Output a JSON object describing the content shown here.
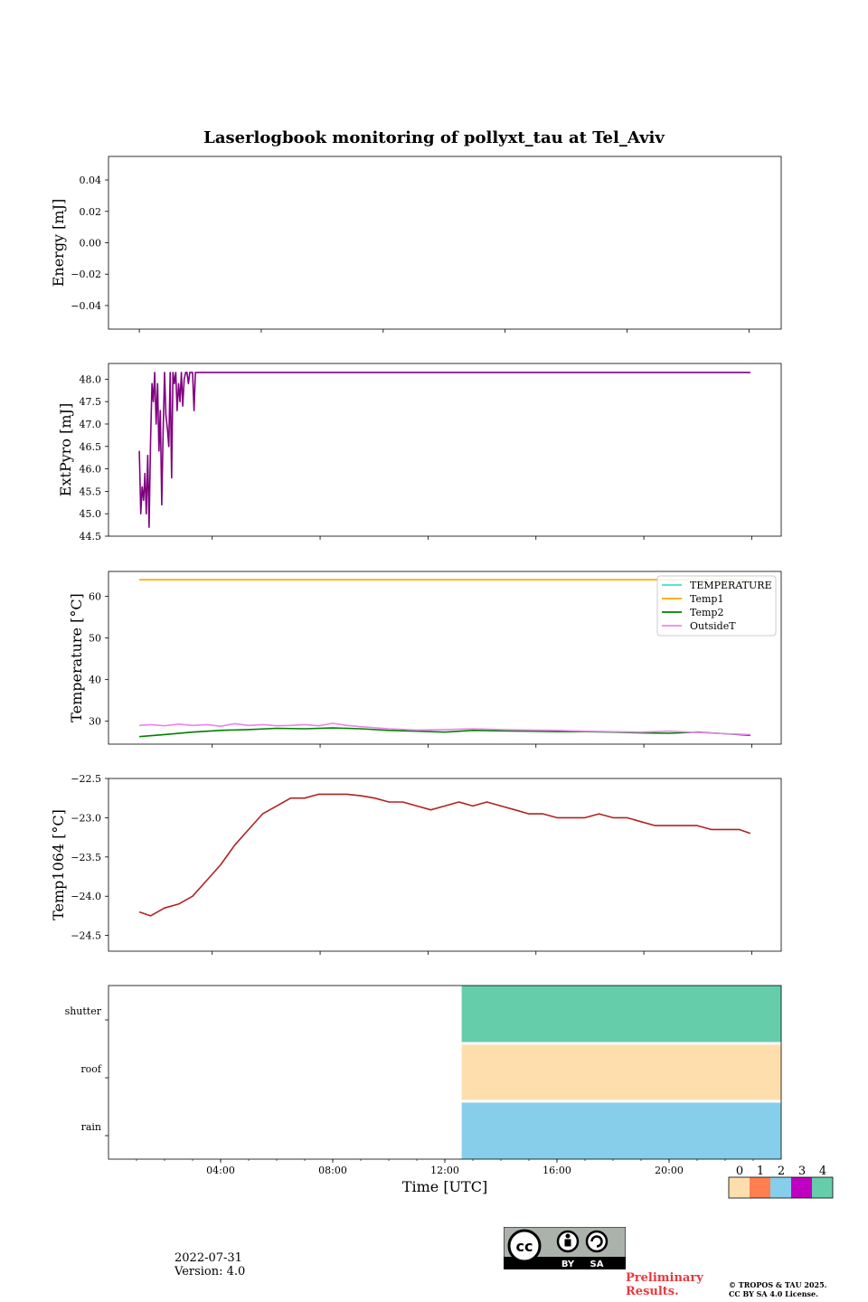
{
  "title": "Laserlogbook monitoring of pollyxt_tau at Tel_Aviv",
  "colors": {
    "extpyro": "#800080",
    "temp1064": "#b22222",
    "TEMPERATURE": "#40e0d0",
    "Temp1": "#ffa500",
    "Temp2": "#008000",
    "OutsideT": "#ee82ee"
  },
  "chart_data": [
    {
      "id": "energy",
      "type": "line",
      "ylabel": "Energy [mJ]",
      "xlim": [
        0,
        24
      ],
      "ylim": [
        -0.055,
        0.055
      ],
      "yticks": [
        0.04,
        0.02,
        0.0,
        -0.02,
        -0.04
      ],
      "yticklabels": [
        "0.04",
        "0.02",
        "0.00",
        "−0.02",
        "−0.04"
      ],
      "xticks_hours": [
        1.1,
        5.45,
        9.8,
        14.15,
        18.5,
        22.85
      ],
      "series": []
    },
    {
      "id": "extpyro",
      "type": "line",
      "ylabel": "ExtPyro [mJ]",
      "xlim": [
        0,
        24
      ],
      "ylim": [
        44.5,
        48.35
      ],
      "yticks": [
        48.0,
        47.5,
        47.0,
        46.5,
        46.0,
        45.5,
        45.0,
        44.5
      ],
      "yticklabels": [
        "48.0",
        "47.5",
        "47.0",
        "46.5",
        "46.0",
        "45.5",
        "45.0",
        "44.5"
      ],
      "xticks_hours": [
        3.7,
        7.55,
        11.4,
        15.25,
        19.1,
        22.95
      ],
      "series": [
        {
          "name": "ExtPyro",
          "x": [
            1.1,
            1.15,
            1.2,
            1.25,
            1.3,
            1.35,
            1.4,
            1.45,
            1.5,
            1.55,
            1.6,
            1.65,
            1.7,
            1.75,
            1.8,
            1.85,
            1.9,
            1.95,
            2.0,
            2.05,
            2.1,
            2.15,
            2.2,
            2.25,
            2.3,
            2.35,
            2.4,
            2.45,
            2.5,
            2.55,
            2.6,
            2.65,
            2.7,
            2.75,
            2.8,
            2.85,
            2.9,
            2.95,
            3.0,
            3.05,
            3.1,
            3.15,
            3.2,
            3.25,
            3.3,
            22.9
          ],
          "values": [
            46.4,
            45.0,
            45.6,
            45.3,
            45.9,
            45.0,
            46.3,
            44.7,
            46.6,
            47.9,
            47.5,
            48.15,
            47.0,
            47.9,
            46.4,
            47.3,
            45.2,
            46.8,
            48.15,
            47.2,
            46.9,
            46.5,
            48.15,
            45.8,
            48.15,
            47.9,
            48.15,
            47.3,
            47.9,
            47.5,
            48.15,
            47.4,
            48.0,
            48.15,
            48.15,
            47.9,
            48.15,
            48.15,
            48.15,
            47.3,
            48.15,
            48.15,
            48.15,
            48.15,
            48.15,
            48.15
          ]
        }
      ]
    },
    {
      "id": "temperature",
      "type": "line",
      "ylabel": "Temperature [°C]",
      "xlim": [
        0,
        24
      ],
      "ylim": [
        24.5,
        66
      ],
      "yticks": [
        60,
        50,
        40,
        30
      ],
      "yticklabels": [
        "60",
        "50",
        "40",
        "30"
      ],
      "xticks_hours": [
        3.7,
        7.55,
        11.4,
        15.25,
        19.1,
        22.95
      ],
      "legend": [
        "TEMPERATURE",
        "Temp1",
        "Temp2",
        "OutsideT"
      ],
      "legend_position": "upper right",
      "series": [
        {
          "name": "Temp1",
          "x": [
            1.1,
            22.9
          ],
          "values": [
            64.0,
            64.0
          ]
        },
        {
          "name": "Temp2",
          "x": [
            1.1,
            2.0,
            3.0,
            4.0,
            5.0,
            6.0,
            7.0,
            8.0,
            9.0,
            10.0,
            11.0,
            12.0,
            13.0,
            14.0,
            15.0,
            16.0,
            17.0,
            18.0,
            19.0,
            20.0,
            21.0,
            22.0,
            22.9
          ],
          "values": [
            26.3,
            26.8,
            27.4,
            27.8,
            28.0,
            28.3,
            28.2,
            28.4,
            28.2,
            27.8,
            27.6,
            27.4,
            27.8,
            27.7,
            27.6,
            27.5,
            27.5,
            27.4,
            27.2,
            27.1,
            27.4,
            27.0,
            26.6
          ]
        },
        {
          "name": "OutsideT",
          "x": [
            1.1,
            1.5,
            2.0,
            2.5,
            3.0,
            3.5,
            4.0,
            4.5,
            5.0,
            5.5,
            6.0,
            6.5,
            7.0,
            7.5,
            8.0,
            8.5,
            9.0,
            10.0,
            11.0,
            12.0,
            13.0,
            14.0,
            15.0,
            16.0,
            17.0,
            18.0,
            19.0,
            20.0,
            21.0,
            22.0,
            22.9
          ],
          "values": [
            29.0,
            29.2,
            28.9,
            29.3,
            29.0,
            29.2,
            28.8,
            29.4,
            29.0,
            29.2,
            28.9,
            29.0,
            29.2,
            28.9,
            29.5,
            29.0,
            28.7,
            28.2,
            27.9,
            28.0,
            28.2,
            28.0,
            27.9,
            27.8,
            27.6,
            27.5,
            27.4,
            27.6,
            27.3,
            27.0,
            26.8
          ]
        }
      ]
    },
    {
      "id": "temp1064",
      "type": "line",
      "ylabel": "Temp1064 [°C]",
      "xlim": [
        0,
        24
      ],
      "ylim": [
        -24.7,
        -22.5
      ],
      "yticks": [
        -22.5,
        -23.0,
        -23.5,
        -24.0,
        -24.5
      ],
      "yticklabels": [
        "−22.5",
        "−23.0",
        "−23.5",
        "−24.0",
        "−24.5"
      ],
      "xticks_hours": [
        3.7,
        7.55,
        11.4,
        15.25,
        19.1,
        22.95
      ],
      "series": [
        {
          "name": "Temp1064",
          "x": [
            1.1,
            1.5,
            2.0,
            2.5,
            3.0,
            3.5,
            4.0,
            4.5,
            5.0,
            5.5,
            6.0,
            6.5,
            7.0,
            7.5,
            8.0,
            8.5,
            9.0,
            9.5,
            10.0,
            10.5,
            11.0,
            11.5,
            12.0,
            12.5,
            13.0,
            13.5,
            14.0,
            14.5,
            15.0,
            15.5,
            16.0,
            16.5,
            17.0,
            17.5,
            18.0,
            18.5,
            19.0,
            19.5,
            20.0,
            20.5,
            21.0,
            21.5,
            22.0,
            22.5,
            22.9
          ],
          "values": [
            -24.2,
            -24.25,
            -24.15,
            -24.1,
            -24.0,
            -23.8,
            -23.6,
            -23.35,
            -23.15,
            -22.95,
            -22.85,
            -22.75,
            -22.75,
            -22.7,
            -22.7,
            -22.7,
            -22.72,
            -22.75,
            -22.8,
            -22.8,
            -22.85,
            -22.9,
            -22.85,
            -22.8,
            -22.85,
            -22.8,
            -22.85,
            -22.9,
            -22.95,
            -22.95,
            -23.0,
            -23.0,
            -23.0,
            -22.95,
            -23.0,
            -23.0,
            -23.05,
            -23.1,
            -23.1,
            -23.1,
            -23.1,
            -23.15,
            -23.15,
            -23.15,
            -23.2
          ]
        }
      ]
    },
    {
      "id": "status",
      "type": "heatmap",
      "rows": [
        "shutter",
        "roof",
        "rain"
      ],
      "xlim": [
        0,
        24
      ],
      "xticks_hours": [
        4,
        8,
        12,
        16,
        20
      ],
      "xticklabels": [
        "04:00",
        "08:00",
        "12:00",
        "16:00",
        "20:00"
      ],
      "xlabel": "Time [UTC]",
      "segments": [
        {
          "row": "shutter",
          "start": 12.6,
          "end": 24,
          "value": 4
        },
        {
          "row": "roof",
          "start": 12.6,
          "end": 24,
          "value": 0
        },
        {
          "row": "rain",
          "start": 12.6,
          "end": 24,
          "value": 2
        }
      ],
      "colorbar": {
        "labels": [
          "0",
          "1",
          "2",
          "3",
          "4"
        ],
        "colors": [
          "#ffdead",
          "#ff7f50",
          "#87ceeb",
          "#c000c0",
          "#66cdaa"
        ]
      }
    }
  ],
  "footer": {
    "date": "2022-07-31",
    "version": "Version: 4.0",
    "preliminary": [
      "Preliminary",
      "Results."
    ],
    "copyright": [
      "© TROPOS & TAU 2025.",
      "CC BY SA 4.0 License."
    ],
    "license_badge": [
      "BY",
      "SA"
    ]
  }
}
